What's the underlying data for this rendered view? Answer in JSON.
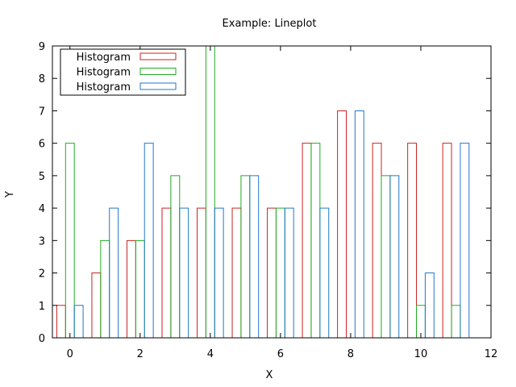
{
  "chart_data": {
    "type": "bar",
    "title": "Example: Lineplot",
    "xlabel": "X",
    "ylabel": "Y",
    "xlim": [
      -0.5,
      12
    ],
    "ylim": [
      0,
      9
    ],
    "xticks": [
      0,
      2,
      4,
      6,
      8,
      10,
      12
    ],
    "yticks": [
      0,
      1,
      2,
      3,
      4,
      5,
      6,
      7,
      8,
      9
    ],
    "grid": false,
    "legend_position": "top-left",
    "style": "outlined bars (histogram steps)",
    "x": [
      0,
      1,
      2,
      3,
      4,
      5,
      6,
      7,
      8,
      9,
      10,
      11
    ],
    "series": [
      {
        "name": "Histogram",
        "color": "#cc2222",
        "values": [
          1,
          2,
          3,
          4,
          4,
          4,
          4,
          6,
          7,
          6,
          6,
          6
        ]
      },
      {
        "name": "Histogram",
        "color": "#22aa22",
        "values": [
          6,
          3,
          3,
          5,
          9,
          5,
          4,
          6,
          0,
          5,
          1,
          1
        ]
      },
      {
        "name": "Histogram",
        "color": "#2277cc",
        "values": [
          1,
          4,
          6,
          4,
          4,
          5,
          4,
          4,
          7,
          5,
          2,
          6
        ]
      }
    ]
  }
}
